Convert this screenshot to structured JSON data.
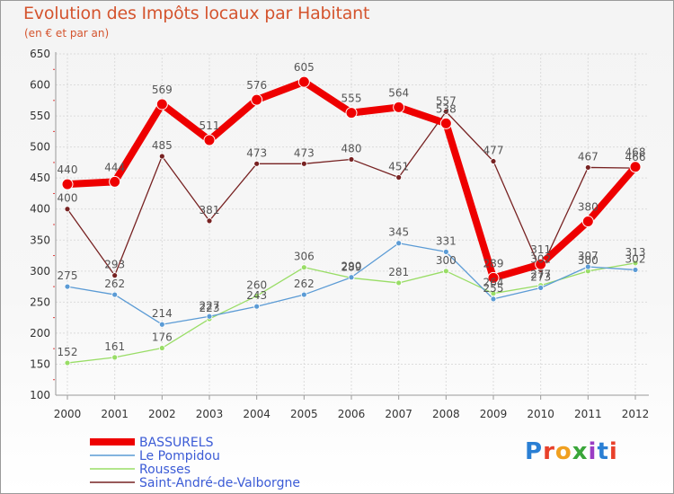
{
  "header": {
    "title": "Evolution des Impôts locaux par Habitant",
    "subtitle": "(en € et par an)"
  },
  "logo": {
    "text": "Proxiti",
    "colors": [
      "#2a7fd4",
      "#e8402a",
      "#f0a020",
      "#3aa63a",
      "#9b3dc4",
      "#2a7fd4",
      "#e8402a"
    ]
  },
  "chart_data": {
    "type": "line",
    "title": "Evolution des Impôts locaux par Habitant",
    "subtitle": "(en € et par an)",
    "xlabel": "",
    "ylabel": "",
    "x": [
      "2000",
      "2001",
      "2002",
      "2003",
      "2004",
      "2005",
      "2006",
      "2007",
      "2008",
      "2009",
      "2010",
      "2011",
      "2012"
    ],
    "ylim": [
      100,
      650
    ],
    "yticks": [
      100,
      150,
      200,
      250,
      300,
      350,
      400,
      450,
      500,
      550,
      600,
      650
    ],
    "grid": true,
    "legend_position": "bottom-left",
    "series": [
      {
        "name": "BASSURELS",
        "color": "#ee0000",
        "values": [
          440,
          444,
          569,
          511,
          576,
          605,
          555,
          564,
          538,
          289,
          311,
          380,
          468
        ],
        "labels": [
          "440",
          "444",
          "569",
          "511",
          "576",
          "605",
          "555",
          "564",
          "538",
          "289",
          "311",
          "380",
          "468"
        ]
      },
      {
        "name": "Le Pompidou",
        "color": "#5b9bd5",
        "values": [
          275,
          262,
          214,
          227,
          243,
          262,
          290,
          345,
          331,
          255,
          273,
          307,
          302
        ],
        "labels": [
          "275",
          "262",
          "214",
          "227",
          "243",
          "262",
          "290",
          "345",
          "331",
          "255",
          "273",
          "307",
          "302"
        ]
      },
      {
        "name": "Rousses",
        "color": "#99dd66",
        "values": [
          152,
          161,
          176,
          223,
          260,
          306,
          289,
          281,
          300,
          264,
          277,
          300,
          313
        ],
        "labels": [
          "152",
          "161",
          "176",
          "223",
          "260",
          "306",
          "289",
          "281",
          "300",
          "264",
          "277",
          "300",
          "313"
        ]
      },
      {
        "name": "Saint-André-de-Valborgne",
        "color": "#772222",
        "values": [
          400,
          293,
          485,
          381,
          473,
          473,
          480,
          451,
          557,
          477,
          302,
          467,
          466
        ],
        "labels": [
          "400",
          "293",
          "485",
          "381",
          "473",
          "473",
          "480",
          "451",
          "557",
          "477",
          "302",
          "467",
          "466"
        ]
      }
    ]
  }
}
